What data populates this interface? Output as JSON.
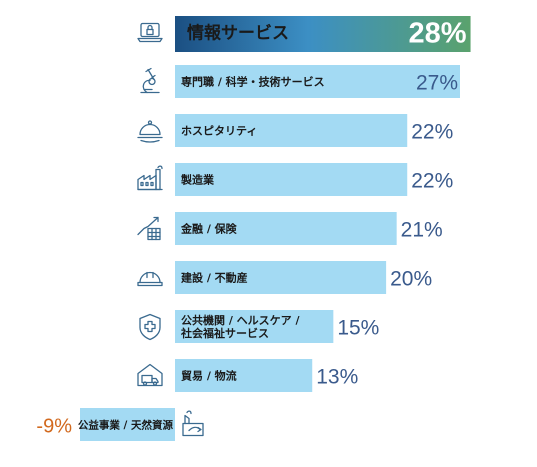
{
  "chart_data": {
    "type": "bar",
    "orientation": "horizontal",
    "categories": [
      [
        "情報サービス"
      ],
      [
        "専門職 / 科学・技術サービス"
      ],
      [
        "ホスピタリティ"
      ],
      [
        "製造業"
      ],
      [
        "金融 / 保険"
      ],
      [
        "建設 / 不動産"
      ],
      [
        "公共機関 / ヘルスケア /",
        "社会福祉サービス"
      ],
      [
        "貿易 / 物流"
      ],
      [
        "公益事業 / 天然資源"
      ]
    ],
    "values": [
      28,
      27,
      22,
      22,
      21,
      20,
      15,
      13,
      -9
    ],
    "value_labels": [
      "28%",
      "27%",
      "22%",
      "22%",
      "21%",
      "20%",
      "15%",
      "13%",
      "-9%"
    ],
    "icons": [
      "laptop-lock-icon",
      "microscope-icon",
      "cloche-icon",
      "factory-icon",
      "growth-chart-icon",
      "hard-hat-icon",
      "shield-cross-icon",
      "warehouse-truck-icon",
      "nature-resource-icon"
    ],
    "highlight_index": 0,
    "colors": {
      "bar": "#a3daf3",
      "value_text": "#3a5a8c",
      "negative_text": "#d2691e",
      "highlight_gradient": [
        "#1b4f82",
        "#3c8fc4",
        "#5aa26d"
      ],
      "highlight_text": "#ffffff",
      "icon": "#3a6a8f"
    }
  }
}
